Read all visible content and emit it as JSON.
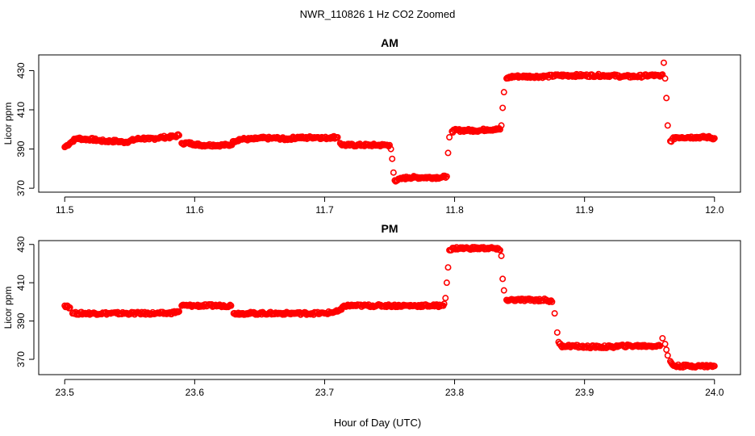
{
  "figure": {
    "title": "NWR_110826  1 Hz CO2 Zoomed",
    "xlabel": "Hour of Day (UTC)"
  },
  "chart_data": [
    {
      "type": "scatter",
      "title": "AM",
      "ylabel": "Licor ppm",
      "xlabel": "",
      "xlim": [
        11.48,
        12.02
      ],
      "ylim": [
        368,
        438
      ],
      "xticks": [
        "11.5",
        "11.6",
        "11.7",
        "11.8",
        "11.9",
        "12.0"
      ],
      "yticks": [
        "370",
        "390",
        "410",
        "430"
      ],
      "grid": false,
      "marker_color": "#ff0000",
      "series": [
        {
          "x": [
            11.5,
            11.502,
            11.504,
            11.506,
            11.508,
            11.51,
            11.515,
            11.52,
            11.525,
            11.53,
            11.535,
            11.54,
            11.545,
            11.55,
            11.555,
            11.56,
            11.565,
            11.57,
            11.575,
            11.58,
            11.585,
            11.588,
            11.59,
            11.595,
            11.6,
            11.605,
            11.61,
            11.615,
            11.62,
            11.625,
            11.628,
            11.63,
            11.635,
            11.64,
            11.645,
            11.65,
            11.655,
            11.66,
            11.665,
            11.67,
            11.675,
            11.68,
            11.685,
            11.69,
            11.695,
            11.7,
            11.705,
            11.71,
            11.712,
            11.714,
            11.72,
            11.725,
            11.73,
            11.735,
            11.74,
            11.745,
            11.75,
            11.751,
            11.752,
            11.753,
            11.754,
            11.756,
            11.76,
            11.765,
            11.77,
            11.775,
            11.78,
            11.785,
            11.79,
            11.794,
            11.795,
            11.796,
            11.798,
            11.8,
            11.805,
            11.81,
            11.815,
            11.82,
            11.825,
            11.83,
            11.835,
            11.836,
            11.837,
            11.838,
            11.84,
            11.845,
            11.85,
            11.86,
            11.87,
            11.88,
            11.89,
            11.9,
            11.91,
            11.92,
            11.93,
            11.94,
            11.95,
            11.955,
            11.958,
            11.96,
            11.961,
            11.962,
            11.963,
            11.964,
            11.966,
            11.97,
            11.975,
            11.98,
            11.985,
            11.99,
            11.995,
            12.0
          ],
          "y": [
            391,
            392,
            393,
            394,
            395,
            395.5,
            395,
            395,
            394.5,
            394,
            394,
            394,
            393.5,
            394,
            395,
            395.5,
            395,
            395.5,
            396,
            396,
            396.5,
            397,
            393,
            393,
            392.5,
            392,
            392,
            392,
            392,
            392,
            392,
            394,
            395,
            395,
            395,
            395.5,
            395.5,
            395.5,
            395.5,
            395,
            395.5,
            396,
            395.5,
            396,
            396,
            395.5,
            396,
            396,
            393,
            392,
            392,
            392,
            392,
            392,
            392,
            392,
            392,
            390,
            385,
            378,
            374,
            374,
            375,
            375.5,
            375.5,
            375.5,
            375.5,
            375.5,
            375.5,
            376,
            388,
            396,
            399,
            399.5,
            399.5,
            399.5,
            399.5,
            399.5,
            400,
            400,
            400,
            402,
            411,
            419,
            426,
            427,
            427,
            427,
            427,
            427.5,
            427.5,
            427.5,
            427.5,
            427.5,
            427,
            427,
            427.5,
            427.5,
            427,
            428,
            434,
            426,
            416,
            402,
            394,
            396,
            396,
            396,
            396,
            396,
            396,
            395.5
          ]
        }
      ]
    },
    {
      "type": "scatter",
      "title": "PM",
      "ylabel": "Licor ppm",
      "xlabel": "",
      "xlim": [
        23.48,
        24.02
      ],
      "ylim": [
        362,
        432
      ],
      "xticks": [
        "23.5",
        "23.6",
        "23.7",
        "23.8",
        "23.9",
        "24.0"
      ],
      "yticks": [
        "370",
        "390",
        "410",
        "430"
      ],
      "grid": false,
      "marker_color": "#ff0000",
      "series": [
        {
          "x": [
            23.5,
            23.502,
            23.504,
            23.506,
            23.51,
            23.515,
            23.52,
            23.53,
            23.54,
            23.55,
            23.56,
            23.57,
            23.58,
            23.588,
            23.59,
            23.595,
            23.6,
            23.61,
            23.62,
            23.628,
            23.63,
            23.635,
            23.64,
            23.65,
            23.66,
            23.67,
            23.68,
            23.69,
            23.7,
            23.71,
            23.713,
            23.715,
            23.72,
            23.73,
            23.74,
            23.75,
            23.76,
            23.77,
            23.78,
            23.79,
            23.792,
            23.793,
            23.794,
            23.795,
            23.796,
            23.8,
            23.81,
            23.82,
            23.83,
            23.835,
            23.836,
            23.837,
            23.838,
            23.84,
            23.85,
            23.86,
            23.87,
            23.875,
            23.877,
            23.879,
            23.88,
            23.882,
            23.89,
            23.9,
            23.91,
            23.92,
            23.93,
            23.94,
            23.95,
            23.958,
            23.96,
            23.962,
            23.963,
            23.964,
            23.966,
            23.968,
            23.97,
            23.975,
            23.98,
            23.99,
            24.0
          ],
          "y": [
            398,
            398,
            397,
            394,
            394,
            394,
            394,
            394,
            394,
            394,
            394,
            394,
            394,
            395,
            398,
            398,
            398,
            398,
            398,
            398,
            394,
            394,
            394,
            394,
            394,
            394,
            394,
            394,
            394,
            395,
            396,
            398,
            398,
            398,
            398,
            398,
            398,
            398,
            398,
            398,
            399,
            402,
            410,
            418,
            427,
            428,
            428,
            428,
            428,
            427,
            424,
            412,
            406,
            401,
            401,
            401,
            401,
            400,
            394,
            384,
            379,
            377,
            377,
            376.5,
            376.5,
            376.5,
            377,
            377,
            377,
            377,
            381,
            378,
            375,
            372,
            369,
            367,
            366.5,
            366.5,
            366.5,
            366.5,
            366.5
          ]
        }
      ]
    }
  ]
}
